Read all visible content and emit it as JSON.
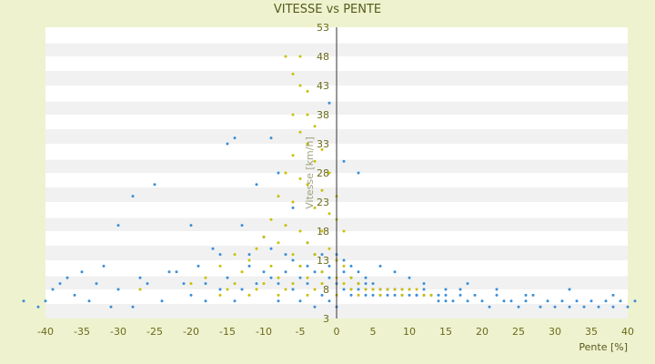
{
  "chart_data": {
    "type": "scatter",
    "title": "VITESSE vs PENTE",
    "xlabel": "Pente [%]",
    "ylabel": "Vitesse [km/h]",
    "xlim": [
      -40,
      40
    ],
    "ylim": [
      3,
      53
    ],
    "xticks": [
      "-40",
      "-35",
      "-30",
      "-25",
      "-20",
      "-15",
      "-10",
      "-5",
      "0",
      "5",
      "10",
      "15",
      "20",
      "25",
      "30",
      "35",
      "40"
    ],
    "yticks": [
      "3",
      "8",
      "13",
      "18",
      "23",
      "28",
      "33",
      "38",
      "43",
      "48",
      "53"
    ],
    "grid": "horizontal bands",
    "colors": {
      "page_bg": "#eef2cf",
      "plot_bg": "#ffffff",
      "band": "#f1f1f1",
      "axis_text": "#6b6b1a",
      "series_a": "#3a8fd8",
      "series_b": "#c9c000"
    },
    "series": [
      {
        "color": "#3a8fd8",
        "points": [
          [
            -41,
            5
          ],
          [
            -40,
            6
          ],
          [
            -39,
            8
          ],
          [
            -38,
            9
          ],
          [
            -36,
            7
          ],
          [
            -35,
            11
          ],
          [
            -34,
            6
          ],
          [
            -33,
            9
          ],
          [
            -31,
            5
          ],
          [
            -30,
            8
          ],
          [
            -30,
            19
          ],
          [
            -28,
            5
          ],
          [
            -28,
            24
          ],
          [
            -26,
            9
          ],
          [
            -25,
            26
          ],
          [
            -24,
            6
          ],
          [
            -22,
            11
          ],
          [
            -20,
            7
          ],
          [
            -20,
            19
          ],
          [
            -18,
            9
          ],
          [
            -17,
            15
          ],
          [
            -16,
            8
          ],
          [
            -15,
            33
          ],
          [
            -14,
            34
          ],
          [
            -14,
            6
          ],
          [
            -13,
            19
          ],
          [
            -12,
            12
          ],
          [
            -11,
            26
          ],
          [
            -10,
            17
          ],
          [
            -9,
            34
          ],
          [
            -9,
            10
          ],
          [
            -8,
            28
          ],
          [
            -8,
            6
          ],
          [
            -7,
            14
          ],
          [
            -6,
            8
          ],
          [
            -6,
            22
          ],
          [
            -5,
            12
          ],
          [
            -5,
            6
          ],
          [
            -4,
            16
          ],
          [
            -4,
            9
          ],
          [
            -3,
            11
          ],
          [
            -3,
            5
          ],
          [
            -2,
            14
          ],
          [
            -2,
            7
          ],
          [
            -1,
            10
          ],
          [
            -1,
            6
          ],
          [
            -1,
            40
          ],
          [
            0,
            13
          ],
          [
            0,
            9
          ],
          [
            0,
            5
          ],
          [
            1,
            11
          ],
          [
            1,
            8
          ],
          [
            1,
            30
          ],
          [
            2,
            10
          ],
          [
            2,
            8
          ],
          [
            2,
            7
          ],
          [
            3,
            9
          ],
          [
            3,
            8
          ],
          [
            3,
            28
          ],
          [
            4,
            9
          ],
          [
            4,
            8
          ],
          [
            4,
            7
          ],
          [
            5,
            9
          ],
          [
            5,
            8
          ],
          [
            5,
            7
          ],
          [
            6,
            8
          ],
          [
            6,
            8
          ],
          [
            6,
            7
          ],
          [
            7,
            8
          ],
          [
            7,
            8
          ],
          [
            7,
            7
          ],
          [
            8,
            8
          ],
          [
            8,
            7
          ],
          [
            8,
            8
          ],
          [
            9,
            8
          ],
          [
            9,
            7
          ],
          [
            10,
            7
          ],
          [
            10,
            8
          ],
          [
            11,
            7
          ],
          [
            11,
            7
          ],
          [
            12,
            7
          ],
          [
            12,
            8
          ],
          [
            13,
            7
          ],
          [
            14,
            7
          ],
          [
            14,
            6
          ],
          [
            15,
            6
          ],
          [
            15,
            7
          ],
          [
            16,
            6
          ],
          [
            17,
            7
          ],
          [
            17,
            8
          ],
          [
            18,
            6
          ],
          [
            19,
            7
          ],
          [
            20,
            6
          ],
          [
            21,
            5
          ],
          [
            22,
            7
          ],
          [
            23,
            6
          ],
          [
            24,
            6
          ],
          [
            25,
            5
          ],
          [
            26,
            6
          ],
          [
            27,
            7
          ],
          [
            28,
            5
          ],
          [
            29,
            6
          ],
          [
            30,
            5
          ],
          [
            31,
            6
          ],
          [
            32,
            5
          ],
          [
            33,
            6
          ],
          [
            34,
            5
          ],
          [
            35,
            6
          ],
          [
            36,
            5
          ],
          [
            37,
            6
          ],
          [
            38,
            5
          ],
          [
            39,
            6
          ],
          [
            40,
            5
          ],
          [
            41,
            6
          ],
          [
            -43,
            6
          ],
          [
            -37,
            10
          ],
          [
            -32,
            12
          ],
          [
            -27,
            10
          ],
          [
            -23,
            11
          ],
          [
            -21,
            9
          ],
          [
            -19,
            12
          ],
          [
            -18,
            6
          ],
          [
            -16,
            14
          ],
          [
            -15,
            10
          ],
          [
            -13,
            8
          ],
          [
            -12,
            14
          ],
          [
            -11,
            9
          ],
          [
            -10,
            11
          ],
          [
            -9,
            15
          ],
          [
            -8,
            9
          ],
          [
            -7,
            11
          ],
          [
            -6,
            13
          ],
          [
            -5,
            10
          ],
          [
            -4,
            12
          ],
          [
            -3,
            14
          ],
          [
            -2,
            11
          ],
          [
            -1,
            12
          ],
          [
            0,
            14
          ],
          [
            1,
            13
          ],
          [
            2,
            12
          ],
          [
            3,
            11
          ],
          [
            4,
            10
          ],
          [
            6,
            12
          ],
          [
            8,
            11
          ],
          [
            10,
            10
          ],
          [
            12,
            9
          ],
          [
            15,
            8
          ],
          [
            18,
            9
          ],
          [
            22,
            8
          ],
          [
            26,
            7
          ],
          [
            32,
            8
          ],
          [
            38,
            7
          ]
        ]
      },
      {
        "color": "#c9c000",
        "points": [
          [
            -7,
            48
          ],
          [
            -6,
            45
          ],
          [
            -5,
            48
          ],
          [
            -5,
            43
          ],
          [
            -4,
            42
          ],
          [
            -4,
            38
          ],
          [
            -6,
            38
          ],
          [
            -3,
            36
          ],
          [
            -5,
            35
          ],
          [
            -4,
            33
          ],
          [
            -6,
            31
          ],
          [
            -3,
            30
          ],
          [
            -7,
            28
          ],
          [
            -5,
            27
          ],
          [
            -4,
            26
          ],
          [
            -2,
            25
          ],
          [
            -8,
            24
          ],
          [
            -6,
            23
          ],
          [
            -3,
            22
          ],
          [
            -1,
            21
          ],
          [
            -9,
            20
          ],
          [
            -7,
            19
          ],
          [
            -5,
            18
          ],
          [
            -2,
            18
          ],
          [
            -10,
            17
          ],
          [
            -8,
            16
          ],
          [
            -4,
            16
          ],
          [
            -1,
            15
          ],
          [
            -11,
            15
          ],
          [
            -6,
            14
          ],
          [
            -3,
            14
          ],
          [
            0,
            13
          ],
          [
            -12,
            13
          ],
          [
            -9,
            12
          ],
          [
            -5,
            12
          ],
          [
            -2,
            11
          ],
          [
            1,
            12
          ],
          [
            -13,
            11
          ],
          [
            -8,
            10
          ],
          [
            -4,
            10
          ],
          [
            0,
            10
          ],
          [
            2,
            10
          ],
          [
            -14,
            9
          ],
          [
            -10,
            9
          ],
          [
            -6,
            9
          ],
          [
            -2,
            9
          ],
          [
            1,
            9
          ],
          [
            3,
            9
          ],
          [
            -15,
            8
          ],
          [
            -11,
            8
          ],
          [
            -7,
            8
          ],
          [
            -3,
            8
          ],
          [
            2,
            8
          ],
          [
            4,
            8
          ],
          [
            5,
            8
          ],
          [
            6,
            8
          ],
          [
            7,
            8
          ],
          [
            8,
            8
          ],
          [
            9,
            8
          ],
          [
            10,
            8
          ],
          [
            11,
            8
          ],
          [
            12,
            7
          ],
          [
            13,
            7
          ],
          [
            -16,
            7
          ],
          [
            -12,
            7
          ],
          [
            -8,
            7
          ],
          [
            -4,
            7
          ],
          [
            0,
            7
          ],
          [
            3,
            7
          ],
          [
            6,
            7
          ],
          [
            9,
            7
          ],
          [
            -27,
            8
          ],
          [
            -20,
            9
          ],
          [
            -18,
            10
          ],
          [
            -16,
            12
          ],
          [
            -14,
            14
          ],
          [
            0,
            20
          ],
          [
            0,
            24
          ],
          [
            1,
            18
          ],
          [
            -1,
            28
          ],
          [
            -2,
            32
          ]
        ]
      }
    ]
  }
}
